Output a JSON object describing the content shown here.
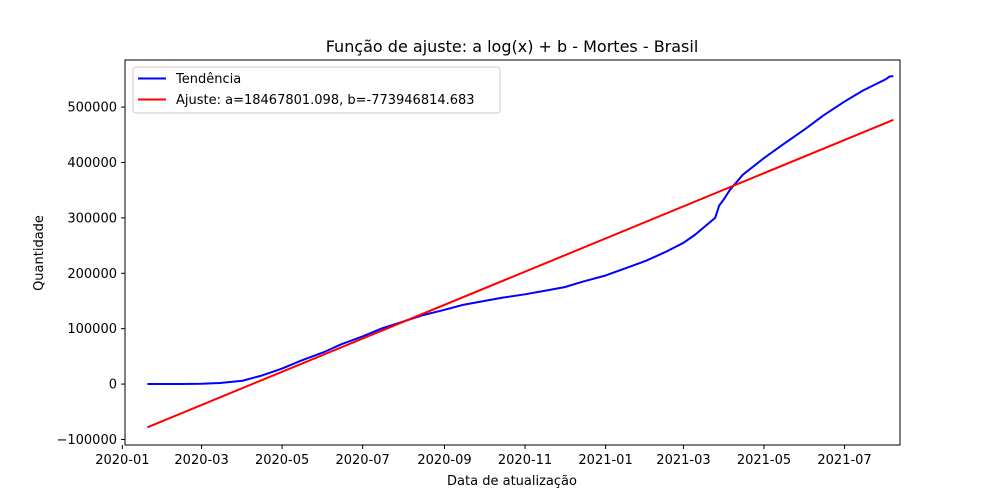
{
  "chart_data": {
    "type": "line",
    "title": "Função de ajuste: a log(x) + b - Mortes - Brasil",
    "xlabel": "Data de atualização",
    "ylabel": "Quantidade",
    "xlim": [
      "2020-01-03",
      "2021-08-12"
    ],
    "ylim": [
      -110000,
      585000
    ],
    "x_ticks": [
      "2020-01",
      "2020-03",
      "2020-05",
      "2020-07",
      "2020-09",
      "2020-11",
      "2021-01",
      "2021-03",
      "2021-05",
      "2021-07"
    ],
    "y_ticks": [
      -100000,
      0,
      100000,
      200000,
      300000,
      400000,
      500000
    ],
    "y_tick_labels": [
      "−100000",
      "0",
      "100000",
      "200000",
      "300000",
      "400000",
      "500000"
    ],
    "grid": false,
    "legend_position": "top-left",
    "series": [
      {
        "name": "Tendência",
        "color": "#0000ff",
        "points": [
          [
            "2020-01-20",
            0
          ],
          [
            "2020-02-15",
            0
          ],
          [
            "2020-03-01",
            500
          ],
          [
            "2020-03-15",
            2000
          ],
          [
            "2020-04-01",
            6000
          ],
          [
            "2020-04-15",
            15000
          ],
          [
            "2020-05-01",
            28000
          ],
          [
            "2020-05-15",
            42000
          ],
          [
            "2020-06-01",
            57000
          ],
          [
            "2020-06-15",
            72000
          ],
          [
            "2020-07-01",
            86000
          ],
          [
            "2020-07-15",
            100000
          ],
          [
            "2020-08-01",
            113000
          ],
          [
            "2020-08-15",
            124000
          ],
          [
            "2020-09-01",
            134000
          ],
          [
            "2020-09-15",
            143000
          ],
          [
            "2020-10-01",
            150000
          ],
          [
            "2020-10-15",
            156000
          ],
          [
            "2020-11-01",
            162000
          ],
          [
            "2020-11-15",
            168000
          ],
          [
            "2020-12-01",
            175000
          ],
          [
            "2020-12-15",
            185000
          ],
          [
            "2021-01-01",
            196000
          ],
          [
            "2021-01-15",
            208000
          ],
          [
            "2021-02-01",
            223000
          ],
          [
            "2021-02-15",
            238000
          ],
          [
            "2021-03-01",
            255000
          ],
          [
            "2021-03-10",
            270000
          ],
          [
            "2021-03-20",
            290000
          ],
          [
            "2021-03-25",
            300000
          ],
          [
            "2021-03-28",
            322000
          ],
          [
            "2021-04-01",
            335000
          ],
          [
            "2021-04-05",
            350000
          ],
          [
            "2021-04-15",
            378000
          ],
          [
            "2021-05-01",
            408000
          ],
          [
            "2021-05-15",
            432000
          ],
          [
            "2021-06-01",
            460000
          ],
          [
            "2021-06-15",
            485000
          ],
          [
            "2021-07-01",
            510000
          ],
          [
            "2021-07-15",
            530000
          ],
          [
            "2021-08-01",
            550000
          ],
          [
            "2021-08-04",
            555000
          ],
          [
            "2021-08-07",
            556000
          ]
        ]
      },
      {
        "name": "Ajuste: a=18467801.098, b=-773946814.683",
        "color": "#ff0000",
        "points": [
          [
            "2020-01-20",
            -78000
          ],
          [
            "2021-08-07",
            477000
          ]
        ]
      }
    ]
  }
}
